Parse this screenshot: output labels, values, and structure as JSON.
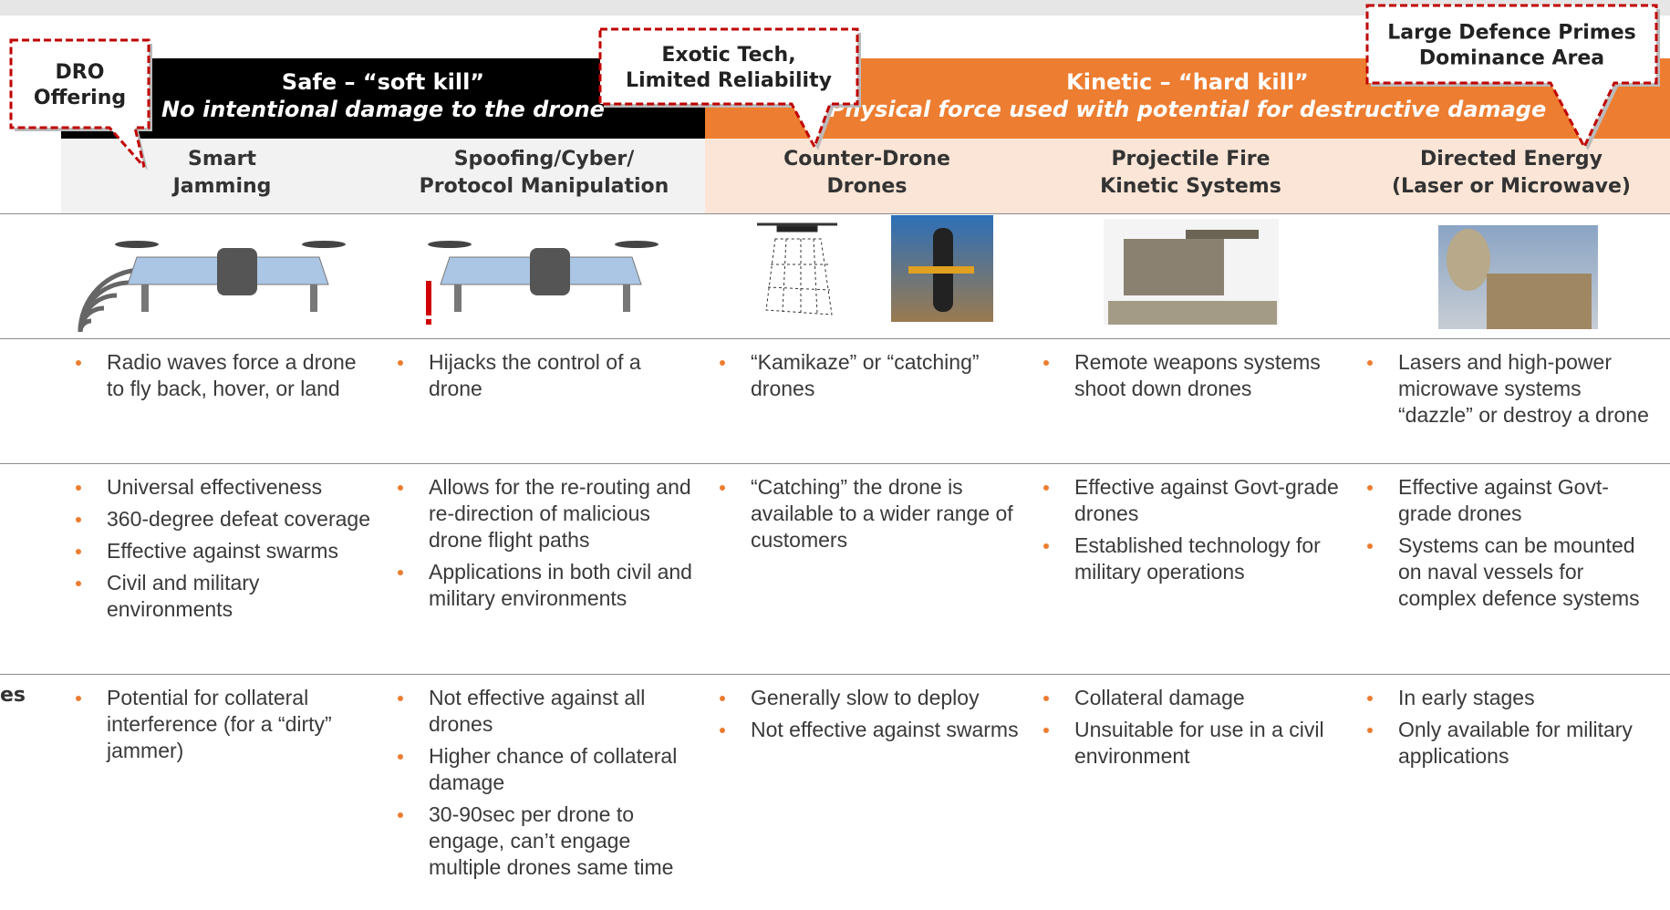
{
  "header": {
    "left_band": {
      "title": "Safe – “soft kill”",
      "subtitle": "No intentional damage to the drone"
    },
    "right_band": {
      "title": "Kinetic – “hard kill”",
      "subtitle": "Physical force used with potential for destructive damage"
    }
  },
  "columns": [
    {
      "title_lines": [
        "Smart",
        "Jamming"
      ]
    },
    {
      "title_lines": [
        "Spoofing/Cyber/",
        "Protocol Manipulation"
      ]
    },
    {
      "title_lines": [
        "Counter-Drone",
        "Drones"
      ]
    },
    {
      "title_lines": [
        "Projectile Fire",
        "Kinetic Systems"
      ]
    },
    {
      "title_lines": [
        "Directed Energy",
        "(Laser or Microwave)"
      ]
    }
  ],
  "row_label_fragment": "es",
  "rows": {
    "description": [
      [
        "Radio waves force a drone to fly back, hover, or land"
      ],
      [
        "Hijacks the control of a drone"
      ],
      [
        "“Kamikaze” or “catching” drones"
      ],
      [
        "Remote weapons systems shoot down drones"
      ],
      [
        "Lasers and high-power microwave systems “dazzle” or destroy a drone"
      ]
    ],
    "pros": [
      [
        "Universal effectiveness",
        "360-degree defeat coverage",
        "Effective against swarms",
        "Civil and military environments"
      ],
      [
        "Allows for the re-routing and re-direction of malicious drone flight paths",
        "Applications in both civil and military environments"
      ],
      [
        "“Catching” the drone is available to a wider range of customers"
      ],
      [
        "Effective against Govt-grade drones",
        "Established technology for military operations"
      ],
      [
        "Effective against Govt-grade drones",
        "Systems can be mounted on naval vessels for complex defence systems"
      ]
    ],
    "cons": [
      [
        "Potential for collateral interference (for a “dirty” jammer)"
      ],
      [
        "Not effective against all drones",
        "Higher chance of collateral damage",
        "30-90sec per drone to engage, can’t engage multiple drones same time"
      ],
      [
        "Generally slow to deploy",
        "Not effective against swarms"
      ],
      [
        "Collateral damage",
        "Unsuitable for use in a civil environment"
      ],
      [
        "In early stages",
        "Only available for military applications"
      ]
    ]
  },
  "callouts": [
    {
      "lines": [
        "DRO",
        "Offering"
      ]
    },
    {
      "lines": [
        "Exotic Tech,",
        "Limited Reliability"
      ]
    },
    {
      "lines": [
        "Large Defence Primes",
        "Dominance Area"
      ]
    }
  ]
}
